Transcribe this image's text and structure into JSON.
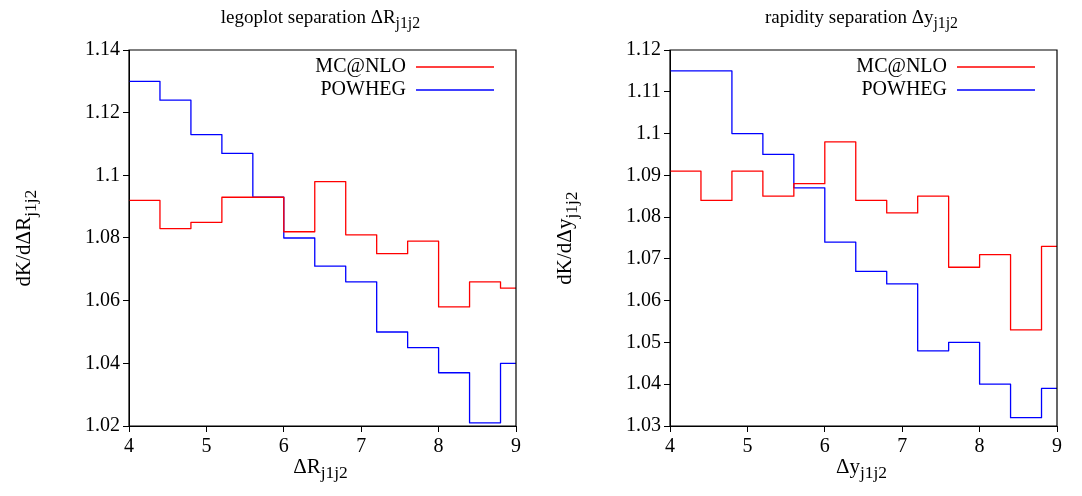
{
  "chart_data": [
    {
      "type": "histogram",
      "title": "legoplot separation ΔR$_{j1j2}$",
      "xlabel": "ΔR$_{j1j2}$",
      "ylabel": "dK/dΔR$_{j1j2}$",
      "bins": [
        4,
        4.4,
        4.8,
        5.2,
        5.6,
        6.0,
        6.4,
        6.8,
        7.2,
        7.6,
        8.0,
        8.4,
        8.8,
        9
      ],
      "series": [
        {
          "name": "MC@NLO",
          "color": "#ff0000",
          "values": [
            1.092,
            1.083,
            1.085,
            1.093,
            1.093,
            1.082,
            1.098,
            1.081,
            1.075,
            1.079,
            1.058,
            1.066,
            1.064
          ]
        },
        {
          "name": "POWHEG",
          "color": "#0000ff",
          "values": [
            1.13,
            1.124,
            1.113,
            1.107,
            1.093,
            1.08,
            1.071,
            1.066,
            1.05,
            1.045,
            1.037,
            1.021,
            1.04
          ]
        }
      ],
      "xlim": [
        4,
        9
      ],
      "xticks": [
        4,
        5,
        6,
        7,
        8,
        9
      ],
      "ylim": [
        1.02,
        1.14
      ],
      "yticks": [
        1.02,
        1.04,
        1.06,
        1.08,
        1.1,
        1.12,
        1.14
      ],
      "legend": "top right",
      "grid": false
    },
    {
      "type": "histogram",
      "title": "rapidity separation Δy$_{j1j2}$",
      "xlabel": "Δy$_{j1j2}$",
      "ylabel": "dK/dΔy$_{j1j2}$",
      "bins": [
        4,
        4.4,
        4.8,
        5.2,
        5.6,
        6.0,
        6.4,
        6.8,
        7.2,
        7.6,
        8.0,
        8.4,
        8.8,
        9
      ],
      "series": [
        {
          "name": "MC@NLO",
          "color": "#ff0000",
          "values": [
            1.091,
            1.084,
            1.091,
            1.085,
            1.088,
            1.098,
            1.084,
            1.081,
            1.085,
            1.068,
            1.071,
            1.053,
            1.073
          ]
        },
        {
          "name": "POWHEG",
          "color": "#0000ff",
          "values": [
            1.115,
            1.115,
            1.1,
            1.095,
            1.087,
            1.074,
            1.067,
            1.064,
            1.048,
            1.05,
            1.04,
            1.032,
            1.039
          ]
        }
      ],
      "xlim": [
        4,
        9
      ],
      "xticks": [
        4,
        5,
        6,
        7,
        8,
        9
      ],
      "ylim": [
        1.03,
        1.12
      ],
      "yticks": [
        1.03,
        1.04,
        1.05,
        1.06,
        1.07,
        1.08,
        1.09,
        1.1,
        1.11,
        1.12
      ],
      "legend": "top right",
      "grid": false
    }
  ]
}
